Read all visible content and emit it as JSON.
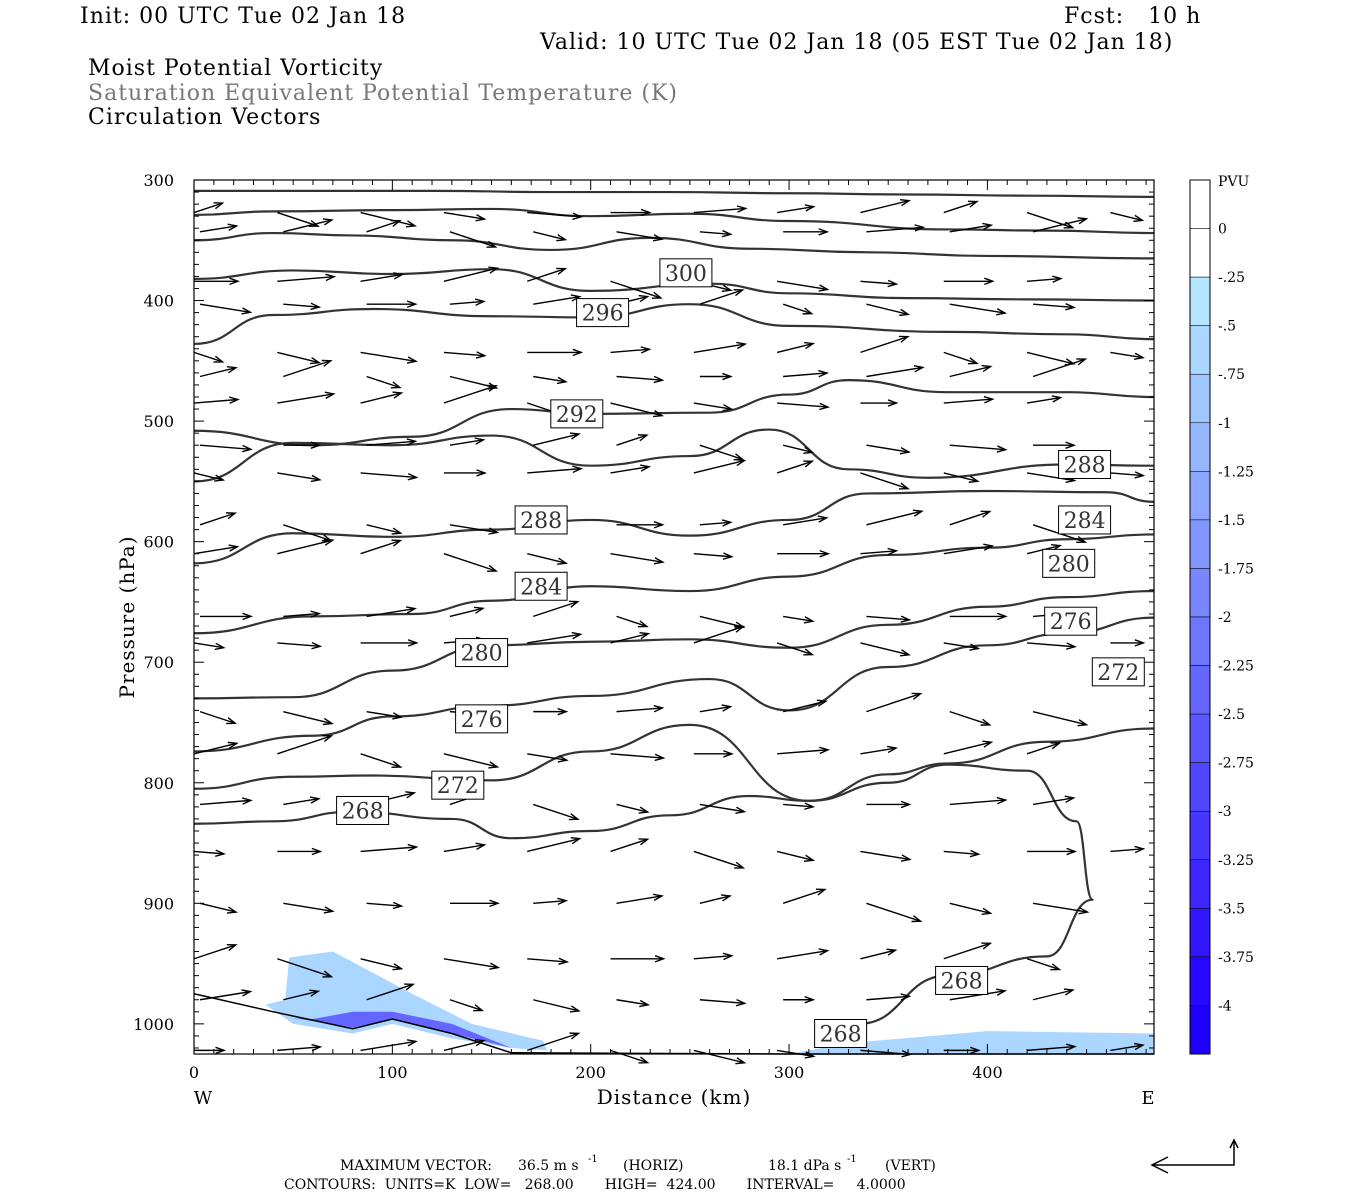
{
  "header": {
    "init": "Init: 00 UTC Tue 02 Jan 18",
    "fcst": "Fcst:   10 h",
    "valid": "Valid: 10 UTC Tue 02 Jan 18 (05 EST Tue 02 Jan 18)",
    "field1": "Moist Potential Vorticity",
    "field2": "Saturation Equivalent Potential Temperature (K)",
    "field3": "Circulation Vectors"
  },
  "footer": {
    "max_vector_label": "MAXIMUM VECTOR:",
    "max_horiz": "36.5 m s",
    "horiz_tag": "(HORIZ)",
    "max_vert": "18.1 dPa s",
    "vert_tag": "(VERT)",
    "exp": "-1",
    "contours": "CONTOURS:  UNITS=K  LOW=   268.00       HIGH=  424.00       INTERVAL=     4.0000"
  },
  "colors": {
    "contour": "#333333",
    "frame": "#000000",
    "header_grey": "#777777",
    "pv_shading": [
      "#ffffff",
      "#ffffff",
      "#b4e6ff",
      "#aad6ff",
      "#a0c6ff",
      "#96b6ff",
      "#8ca6ff",
      "#8296ff",
      "#7886ff",
      "#6e76ff",
      "#6466ff",
      "#5a56ff",
      "#5046ff",
      "#4636ff",
      "#3c26ff",
      "#3216ff",
      "#2806ff",
      "#1e00ff"
    ]
  },
  "chart_data": {
    "type": "contour",
    "xlabel": "Distance (km)",
    "ylabel": "Pressure (hPa)",
    "x_end_labels": {
      "left": "W",
      "right": "E"
    },
    "xlim": [
      0,
      484
    ],
    "ylim": [
      300,
      1025
    ],
    "y_reversed": true,
    "xticks": [
      0,
      100,
      200,
      300,
      400
    ],
    "yticks": [
      300,
      400,
      500,
      600,
      700,
      800,
      900,
      1000
    ],
    "colorbar": {
      "title": "PVU",
      "labels": [
        "0",
        "-.25",
        "-.5",
        "-.75",
        "-1",
        "-1.25",
        "-1.5",
        "-1.75",
        "-2",
        "-2.25",
        "-2.5",
        "-2.75",
        "-3",
        "-3.25",
        "-3.5",
        "-3.75",
        "-4"
      ]
    },
    "contour_labels": [
      {
        "text": "300",
        "x": 248,
        "y": 377
      },
      {
        "text": "296",
        "x": 206,
        "y": 410
      },
      {
        "text": "292",
        "x": 193,
        "y": 494
      },
      {
        "text": "288",
        "x": 449,
        "y": 536
      },
      {
        "text": "288",
        "x": 175,
        "y": 582
      },
      {
        "text": "284",
        "x": 449,
        "y": 582
      },
      {
        "text": "280",
        "x": 441,
        "y": 618
      },
      {
        "text": "284",
        "x": 175,
        "y": 637
      },
      {
        "text": "276",
        "x": 442,
        "y": 666
      },
      {
        "text": "280",
        "x": 145,
        "y": 692
      },
      {
        "text": "272",
        "x": 466,
        "y": 708
      },
      {
        "text": "276",
        "x": 145,
        "y": 747
      },
      {
        "text": "272",
        "x": 133,
        "y": 802
      },
      {
        "text": "268",
        "x": 85,
        "y": 823
      },
      {
        "text": "268",
        "x": 387,
        "y": 964
      },
      {
        "text": "268",
        "x": 326,
        "y": 1008
      }
    ],
    "isentropes": [
      [
        [
          0,
          309
        ],
        [
          60,
          309
        ],
        [
          120,
          309
        ],
        [
          180,
          310
        ],
        [
          240,
          310
        ],
        [
          300,
          311
        ],
        [
          360,
          312
        ],
        [
          420,
          313
        ],
        [
          484,
          314
        ]
      ],
      [
        [
          0,
          329
        ],
        [
          40,
          326
        ],
        [
          100,
          325
        ],
        [
          150,
          324
        ],
        [
          200,
          330
        ],
        [
          250,
          328
        ],
        [
          300,
          334
        ],
        [
          380,
          341
        ],
        [
          430,
          342
        ],
        [
          484,
          344
        ]
      ],
      [
        [
          0,
          350
        ],
        [
          40,
          344
        ],
        [
          80,
          346
        ],
        [
          130,
          350
        ],
        [
          180,
          358
        ],
        [
          230,
          348
        ],
        [
          280,
          357
        ],
        [
          340,
          360
        ],
        [
          400,
          363
        ],
        [
          484,
          365
        ]
      ],
      [
        [
          0,
          382
        ],
        [
          50,
          375
        ],
        [
          100,
          378
        ],
        [
          150,
          374
        ],
        [
          200,
          392
        ],
        [
          260,
          386
        ],
        [
          300,
          394
        ],
        [
          360,
          398
        ],
        [
          420,
          399
        ],
        [
          484,
          400
        ]
      ],
      [
        [
          0,
          436
        ],
        [
          40,
          412
        ],
        [
          90,
          407
        ],
        [
          150,
          413
        ],
        [
          200,
          414
        ],
        [
          250,
          403
        ],
        [
          300,
          421
        ],
        [
          380,
          426
        ],
        [
          440,
          428
        ],
        [
          484,
          432
        ]
      ],
      [
        [
          0,
          508
        ],
        [
          60,
          520
        ],
        [
          110,
          513
        ],
        [
          160,
          490
        ],
        [
          200,
          494
        ],
        [
          260,
          493
        ],
        [
          300,
          478
        ],
        [
          330,
          466
        ],
        [
          380,
          476
        ],
        [
          440,
          476
        ],
        [
          484,
          480
        ]
      ],
      [
        [
          0,
          550
        ],
        [
          50,
          518
        ],
        [
          100,
          520
        ],
        [
          150,
          512
        ],
        [
          200,
          537
        ],
        [
          250,
          529
        ],
        [
          290,
          507
        ],
        [
          330,
          540
        ],
        [
          370,
          547
        ],
        [
          440,
          536
        ],
        [
          484,
          537
        ]
      ],
      [
        [
          0,
          618
        ],
        [
          50,
          593
        ],
        [
          100,
          596
        ],
        [
          150,
          590
        ],
        [
          200,
          582
        ],
        [
          250,
          595
        ],
        [
          300,
          582
        ],
        [
          340,
          560
        ],
        [
          400,
          558
        ],
        [
          460,
          559
        ],
        [
          484,
          567
        ]
      ],
      [
        [
          0,
          676
        ],
        [
          60,
          662
        ],
        [
          110,
          660
        ],
        [
          150,
          649
        ],
        [
          200,
          637
        ],
        [
          250,
          641
        ],
        [
          300,
          629
        ],
        [
          350,
          611
        ],
        [
          400,
          605
        ],
        [
          440,
          598
        ],
        [
          484,
          594
        ]
      ],
      [
        [
          0,
          730
        ],
        [
          50,
          729
        ],
        [
          100,
          707
        ],
        [
          150,
          686
        ],
        [
          200,
          683
        ],
        [
          250,
          681
        ],
        [
          300,
          688
        ],
        [
          350,
          669
        ],
        [
          400,
          654
        ],
        [
          440,
          646
        ],
        [
          484,
          641
        ]
      ],
      [
        [
          0,
          774
        ],
        [
          60,
          761
        ],
        [
          100,
          745
        ],
        [
          150,
          736
        ],
        [
          200,
          728
        ],
        [
          260,
          714
        ],
        [
          300,
          740
        ],
        [
          350,
          704
        ],
        [
          400,
          686
        ],
        [
          440,
          676
        ],
        [
          484,
          663
        ]
      ],
      [
        [
          0,
          805
        ],
        [
          50,
          795
        ],
        [
          90,
          794
        ],
        [
          150,
          798
        ],
        [
          200,
          774
        ],
        [
          250,
          752
        ],
        [
          310,
          815
        ],
        [
          350,
          793
        ],
        [
          380,
          784
        ],
        [
          430,
          766
        ],
        [
          484,
          755
        ]
      ],
      [
        [
          0,
          834
        ],
        [
          40,
          832
        ],
        [
          80,
          824
        ],
        [
          130,
          830
        ],
        [
          160,
          846
        ],
        [
          200,
          840
        ],
        [
          240,
          827
        ],
        [
          280,
          811
        ],
        [
          310,
          815
        ],
        [
          350,
          800
        ],
        [
          380,
          785
        ],
        [
          420,
          790
        ],
        [
          445,
          832
        ],
        [
          453,
          897
        ],
        [
          430,
          944
        ],
        [
          380,
          960
        ],
        [
          335,
          1000
        ],
        [
          320,
          1010
        ]
      ]
    ],
    "vector_rows_p": [
      327,
      343,
      384,
      403,
      443,
      463,
      485,
      520,
      543,
      586,
      610,
      662,
      684,
      741,
      776,
      818,
      857,
      900,
      946,
      980,
      1022
    ],
    "vector_cols_km": [
      0,
      42,
      84,
      126,
      168,
      210,
      252,
      294,
      336,
      378,
      420,
      462
    ],
    "pv_shaded_regions": [
      {
        "level": "-.25",
        "points": [
          [
            36,
            984
          ],
          [
            50,
            1000
          ],
          [
            80,
            1008
          ],
          [
            100,
            1000
          ],
          [
            130,
            1012
          ],
          [
            160,
            1020
          ],
          [
            178,
            1022
          ],
          [
            176,
            1014
          ],
          [
            140,
            1000
          ],
          [
            110,
            975
          ],
          [
            70,
            940
          ],
          [
            48,
            945
          ],
          [
            46,
            980
          ]
        ]
      },
      {
        "level": "-.25",
        "points": [
          [
            300,
            1025
          ],
          [
            330,
            1016
          ],
          [
            400,
            1006
          ],
          [
            484,
            1008
          ],
          [
            484,
            1025
          ]
        ]
      },
      {
        "level": "-2",
        "points": [
          [
            50,
            995
          ],
          [
            80,
            1003
          ],
          [
            100,
            996
          ],
          [
            130,
            1008
          ],
          [
            160,
            1020
          ],
          [
            130,
            1000
          ],
          [
            100,
            990
          ],
          [
            80,
            990
          ],
          [
            60,
            996
          ]
        ]
      }
    ]
  }
}
